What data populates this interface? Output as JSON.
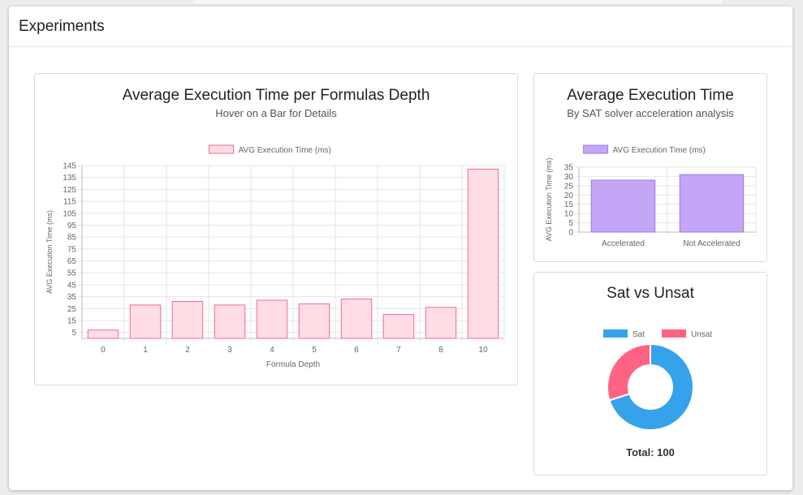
{
  "header": {
    "title": "Experiments"
  },
  "depth_panel": {
    "title": "Average Execution Time per Formulas Depth",
    "subtitle": "Hover on a Bar for Details"
  },
  "accel_panel": {
    "title": "Average Execution Time",
    "subtitle": "By SAT solver acceleration analysis"
  },
  "satunsat_panel": {
    "title": "Sat vs Unsat",
    "total_label": "Total: 100"
  },
  "colors": {
    "pink_fill": "#ffdde4",
    "pink_stroke": "#f06a8c",
    "purple_fill": "#c3a6f6",
    "purple_stroke": "#9d7ae8",
    "sat": "#36a2eb",
    "unsat": "#ff6384"
  },
  "chart_data": [
    {
      "type": "bar",
      "title": "Average Execution Time per Formulas Depth",
      "subtitle": "Hover on a Bar for Details",
      "xlabel": "Formula Depth",
      "ylabel": "AVG Execution Time (ms)",
      "legend": "top",
      "grid": true,
      "ylim": [
        0,
        145
      ],
      "yticks": [
        5,
        15,
        25,
        35,
        45,
        55,
        65,
        75,
        85,
        95,
        105,
        115,
        125,
        135,
        145
      ],
      "categories": [
        "0",
        "1",
        "2",
        "3",
        "4",
        "5",
        "6",
        "7",
        "8",
        "10"
      ],
      "series": [
        {
          "name": "AVG Execution Time (ms)",
          "values": [
            7,
            28,
            31,
            28,
            32,
            29,
            33,
            20,
            26,
            142
          ]
        }
      ]
    },
    {
      "type": "bar",
      "title": "Average Execution Time",
      "subtitle": "By SAT solver acceleration analysis",
      "xlabel": "",
      "ylabel": "AVG Execution Time (ms)",
      "legend": "top",
      "grid": true,
      "ylim": [
        0,
        35
      ],
      "yticks": [
        0,
        5,
        10,
        15,
        20,
        25,
        30,
        35
      ],
      "categories": [
        "Accelerated",
        "Not Accelerated"
      ],
      "series": [
        {
          "name": "AVG Execution Time (ms)",
          "values": [
            28,
            31
          ]
        }
      ]
    },
    {
      "type": "pie",
      "title": "Sat vs Unsat",
      "legend": "top",
      "categories": [
        "Sat",
        "Unsat"
      ],
      "values": [
        70,
        30
      ]
    }
  ]
}
